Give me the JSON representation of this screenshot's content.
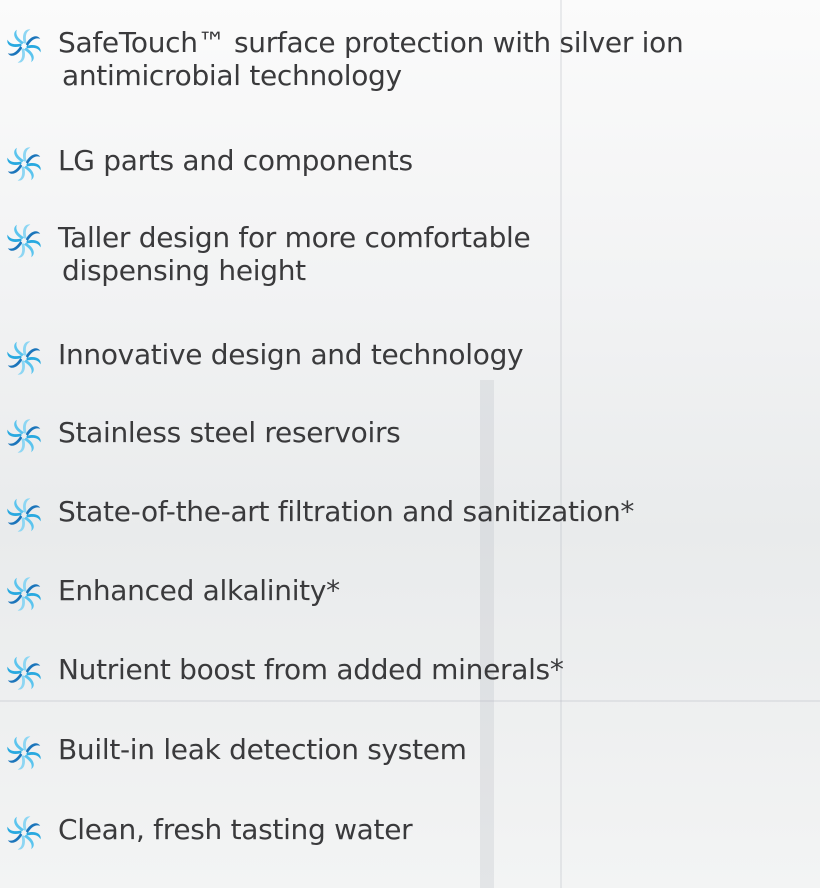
{
  "features": [
    {
      "lines": [
        "SafeTouch™ surface protection with silver ion",
        "antimicrobial technology"
      ]
    },
    {
      "lines": [
        "LG parts and components"
      ]
    },
    {
      "lines": [
        "Taller design for more comfortable",
        "dispensing height"
      ]
    },
    {
      "lines": [
        "Innovative design and technology"
      ]
    },
    {
      "lines": [
        "Stainless steel reservoirs"
      ]
    },
    {
      "lines": [
        "State-of-the-art filtration and sanitization*"
      ]
    },
    {
      "lines": [
        "Enhanced alkalinity*"
      ]
    },
    {
      "lines": [
        "Nutrient boost from added minerals*"
      ]
    },
    {
      "lines": [
        "Built-in leak detection system"
      ]
    },
    {
      "lines": [
        "Clean, fresh tasting water"
      ]
    }
  ]
}
